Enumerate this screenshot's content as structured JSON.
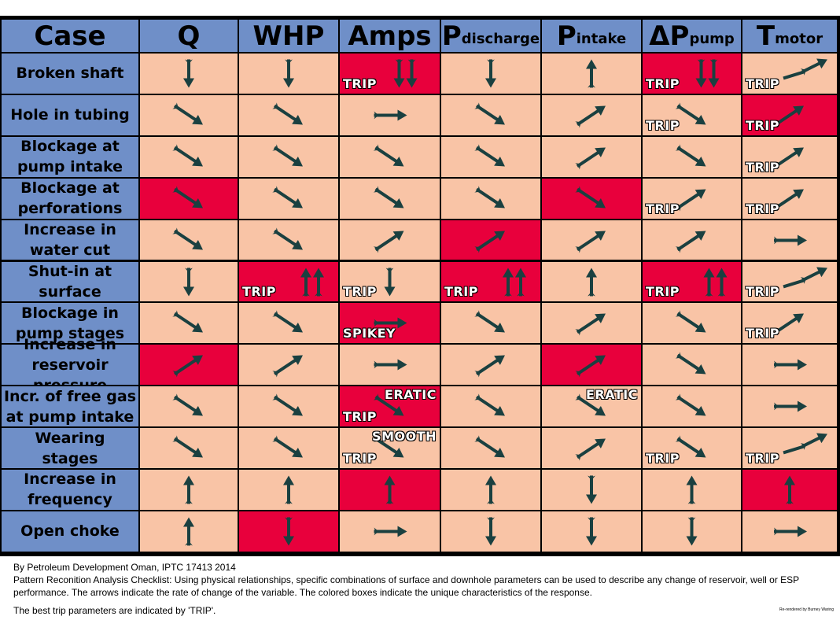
{
  "colors": {
    "header_bg": "#6f8fc8",
    "cell_bg": "#f9c4a6",
    "highlight_bg": "#e8003c",
    "arrow": "#1a4040"
  },
  "headers": [
    {
      "main": "Case",
      "sub": ""
    },
    {
      "main": "Q",
      "sub": ""
    },
    {
      "main": "WHP",
      "sub": ""
    },
    {
      "main": "Amps",
      "sub": ""
    },
    {
      "main": "P",
      "sub": "discharge"
    },
    {
      "main": "P",
      "sub": "intake"
    },
    {
      "main": "ΔP",
      "sub": "pump"
    },
    {
      "main": "T",
      "sub": "motor"
    }
  ],
  "rows": [
    {
      "label": "Broken shaft",
      "cells": [
        {
          "arrow": "down"
        },
        {
          "arrow": "down"
        },
        {
          "arrow": "down2",
          "hl": true,
          "tags": [
            "TRIP"
          ]
        },
        {
          "arrow": "down"
        },
        {
          "arrow": "up"
        },
        {
          "arrow": "down2",
          "hl": true,
          "tags": [
            "TRIP"
          ]
        },
        {
          "arrow": "sharp-up",
          "tags": [
            "TRIP"
          ]
        }
      ]
    },
    {
      "label": "Hole in tubing",
      "cells": [
        {
          "arrow": "diag-down"
        },
        {
          "arrow": "diag-down"
        },
        {
          "arrow": "right"
        },
        {
          "arrow": "diag-down"
        },
        {
          "arrow": "diag-up"
        },
        {
          "arrow": "diag-down",
          "tags": [
            "TRIP"
          ]
        },
        {
          "arrow": "diag-up",
          "hl": true,
          "tags": [
            "TRIP"
          ]
        }
      ]
    },
    {
      "label": "Blockage at\npump intake",
      "cells": [
        {
          "arrow": "diag-down"
        },
        {
          "arrow": "diag-down"
        },
        {
          "arrow": "diag-down"
        },
        {
          "arrow": "diag-down"
        },
        {
          "arrow": "diag-up"
        },
        {
          "arrow": "diag-down"
        },
        {
          "arrow": "diag-up",
          "tags": [
            "TRIP"
          ]
        }
      ]
    },
    {
      "label": "Blockage at\nperforations",
      "cells": [
        {
          "arrow": "diag-down",
          "hl": true
        },
        {
          "arrow": "diag-down"
        },
        {
          "arrow": "diag-down"
        },
        {
          "arrow": "diag-down"
        },
        {
          "arrow": "diag-down",
          "hl": true
        },
        {
          "arrow": "diag-up",
          "tags": [
            "TRIP"
          ]
        },
        {
          "arrow": "diag-up",
          "tags": [
            "TRIP"
          ]
        }
      ]
    },
    {
      "label": "Increase in\nwater cut",
      "cells": [
        {
          "arrow": "diag-down"
        },
        {
          "arrow": "diag-down"
        },
        {
          "arrow": "diag-up"
        },
        {
          "arrow": "diag-up",
          "hl": true
        },
        {
          "arrow": "diag-up"
        },
        {
          "arrow": "diag-up"
        },
        {
          "arrow": "right"
        }
      ]
    },
    {
      "label": "Shut-in at\nsurface",
      "cells": [
        {
          "arrow": "down"
        },
        {
          "arrow": "up2",
          "hl": true,
          "tags": [
            "TRIP"
          ]
        },
        {
          "arrow": "down",
          "tags": [
            "TRIP"
          ]
        },
        {
          "arrow": "up2",
          "hl": true,
          "tags": [
            "TRIP"
          ]
        },
        {
          "arrow": "up"
        },
        {
          "arrow": "up2",
          "hl": true,
          "tags": [
            "TRIP"
          ]
        },
        {
          "arrow": "sharp-up",
          "tags": [
            "TRIP"
          ]
        }
      ]
    },
    {
      "label": "Blockage in\npump stages",
      "cells": [
        {
          "arrow": "diag-down"
        },
        {
          "arrow": "diag-down"
        },
        {
          "arrow": "right",
          "hl": true,
          "tags": [
            "SPIKEY"
          ]
        },
        {
          "arrow": "diag-down"
        },
        {
          "arrow": "diag-up"
        },
        {
          "arrow": "diag-down"
        },
        {
          "arrow": "diag-up",
          "tags": [
            "TRIP"
          ]
        }
      ]
    },
    {
      "label": "Increase in\nreservoir pressure",
      "cells": [
        {
          "arrow": "diag-up",
          "hl": true
        },
        {
          "arrow": "diag-up"
        },
        {
          "arrow": "right"
        },
        {
          "arrow": "diag-up"
        },
        {
          "arrow": "diag-up",
          "hl": true
        },
        {
          "arrow": "diag-down"
        },
        {
          "arrow": "right"
        }
      ]
    },
    {
      "label": "Incr. of free gas\nat pump intake",
      "cells": [
        {
          "arrow": "diag-down"
        },
        {
          "arrow": "diag-down"
        },
        {
          "arrow": "diag-down",
          "hl": true,
          "tags": [
            "ERATIC",
            "TRIP"
          ]
        },
        {
          "arrow": "diag-down"
        },
        {
          "arrow": "diag-down",
          "tags": [
            "ERATIC"
          ]
        },
        {
          "arrow": "diag-down"
        },
        {
          "arrow": "right"
        }
      ]
    },
    {
      "label": "Wearing\nstages",
      "cells": [
        {
          "arrow": "diag-down"
        },
        {
          "arrow": "diag-down"
        },
        {
          "arrow": "diag-down",
          "tags": [
            "SMOOTH",
            "TRIP"
          ]
        },
        {
          "arrow": "diag-down"
        },
        {
          "arrow": "diag-up"
        },
        {
          "arrow": "diag-down",
          "tags": [
            "TRIP"
          ]
        },
        {
          "arrow": "sharp-up",
          "tags": [
            "TRIP"
          ]
        }
      ]
    },
    {
      "label": "Increase in\nfrequency",
      "cells": [
        {
          "arrow": "up"
        },
        {
          "arrow": "up"
        },
        {
          "arrow": "up",
          "hl": true
        },
        {
          "arrow": "up"
        },
        {
          "arrow": "down"
        },
        {
          "arrow": "up"
        },
        {
          "arrow": "up",
          "hl": true
        }
      ]
    },
    {
      "label": "Open choke",
      "cells": [
        {
          "arrow": "up"
        },
        {
          "arrow": "down",
          "hl": true
        },
        {
          "arrow": "right"
        },
        {
          "arrow": "down"
        },
        {
          "arrow": "down"
        },
        {
          "arrow": "down"
        },
        {
          "arrow": "right"
        }
      ]
    }
  ],
  "footer": {
    "credit": "By Petroleum Development Oman, IPTC 17413 2014",
    "description": "Pattern Reconition Analysis Checklist: Using physical relationships, specific combinations of surface and downhole parameters can be used to describe any change of reservoir, well or ESP performance.   The arrows indicate the rate of change of the variable.  The colored boxes indicate the unique characteristics of the response.",
    "best_trip": "The best trip parameters are indicated by 'TRIP'.",
    "rerendered": "Re-rendered by Burney Waring"
  }
}
